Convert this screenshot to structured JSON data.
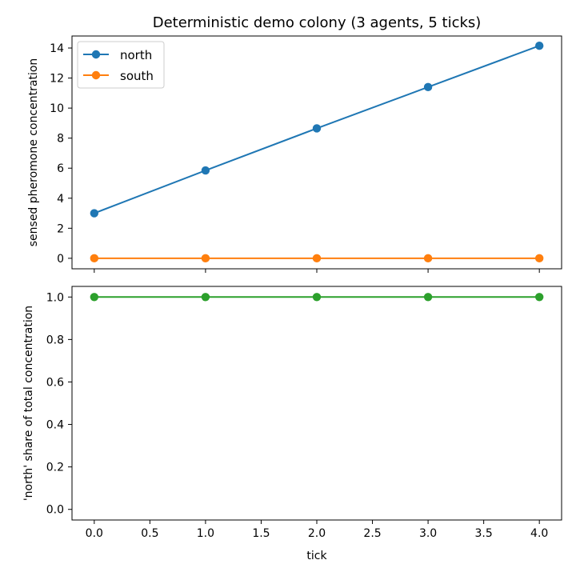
{
  "chart_data": [
    {
      "type": "line",
      "title": "Deterministic demo colony (3 agents, 5 ticks)",
      "xlabel": "",
      "ylabel": "sensed pheromone concentration",
      "x": [
        0,
        1,
        2,
        3,
        4
      ],
      "xlim": [
        -0.2,
        4.2
      ],
      "ylim": [
        -0.7,
        14.8
      ],
      "xticks": [
        0,
        1,
        2,
        3,
        4
      ],
      "yticks": [
        0,
        2,
        4,
        6,
        8,
        10,
        12,
        14
      ],
      "ytick_labels": [
        "0",
        "2",
        "4",
        "6",
        "8",
        "10",
        "12",
        "14"
      ],
      "legend": "top-left",
      "grid": false,
      "series": [
        {
          "name": "north",
          "color": "#1f77b4",
          "values": [
            3.0,
            5.85,
            8.65,
            11.4,
            14.15
          ]
        },
        {
          "name": "south",
          "color": "#ff7f0e",
          "values": [
            0,
            0,
            0,
            0,
            0
          ]
        }
      ]
    },
    {
      "type": "line",
      "title": "",
      "xlabel": "tick",
      "ylabel": "'north' share of total concentration",
      "x": [
        0,
        1,
        2,
        3,
        4
      ],
      "xlim": [
        -0.2,
        4.2
      ],
      "ylim": [
        -0.05,
        1.05
      ],
      "xticks": [
        0,
        0.5,
        1,
        1.5,
        2,
        2.5,
        3,
        3.5,
        4
      ],
      "xtick_labels": [
        "0.0",
        "0.5",
        "1.0",
        "1.5",
        "2.0",
        "2.5",
        "3.0",
        "3.5",
        "4.0"
      ],
      "yticks": [
        0,
        0.2,
        0.4,
        0.6,
        0.8,
        1.0
      ],
      "ytick_labels": [
        "0.0",
        "0.2",
        "0.4",
        "0.6",
        "0.8",
        "1.0"
      ],
      "grid": false,
      "series": [
        {
          "color": "#2ca02c",
          "values": [
            1.0,
            1.0,
            1.0,
            1.0,
            1.0
          ]
        }
      ]
    }
  ]
}
